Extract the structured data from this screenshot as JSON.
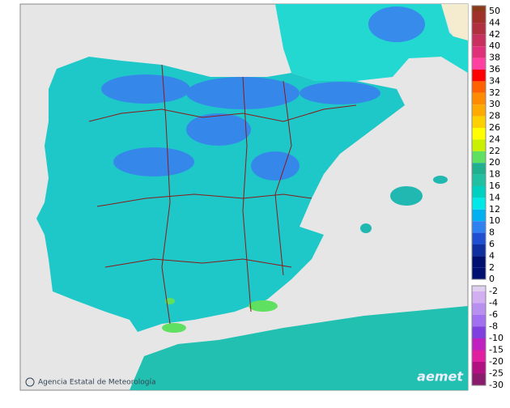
{
  "legend": {
    "scale": [
      {
        "value": 50,
        "color": "#8b3a1a"
      },
      {
        "value": 44,
        "color": "#a0302a"
      },
      {
        "value": 42,
        "color": "#b03040"
      },
      {
        "value": 40,
        "color": "#c83060"
      },
      {
        "value": 38,
        "color": "#e0307a"
      },
      {
        "value": 36,
        "color": "#ff40a0"
      },
      {
        "value": 34,
        "color": "#ff0000"
      },
      {
        "value": 32,
        "color": "#ff6000"
      },
      {
        "value": 30,
        "color": "#ff8c00"
      },
      {
        "value": 28,
        "color": "#ffaa00"
      },
      {
        "value": 26,
        "color": "#ffd000"
      },
      {
        "value": 24,
        "color": "#ffff00"
      },
      {
        "value": 22,
        "color": "#c8f000"
      },
      {
        "value": 20,
        "color": "#60e060"
      },
      {
        "value": 18,
        "color": "#20b090"
      },
      {
        "value": 16,
        "color": "#20c0a0"
      },
      {
        "value": 14,
        "color": "#00d0c0"
      },
      {
        "value": 12,
        "color": "#00e8e8"
      },
      {
        "value": 10,
        "color": "#00b0f0"
      },
      {
        "value": 8,
        "color": "#3080f0"
      },
      {
        "value": 6,
        "color": "#2050d0"
      },
      {
        "value": 4,
        "color": "#1030a0"
      },
      {
        "value": 2,
        "color": "#001070"
      },
      {
        "value": 0,
        "color": "#001070"
      }
    ],
    "scale_negative": [
      {
        "value": -2,
        "color": "#e0d0f0"
      },
      {
        "value": -4,
        "color": "#d0b0f0"
      },
      {
        "value": -6,
        "color": "#b890f0"
      },
      {
        "value": -8,
        "color": "#a070f0"
      },
      {
        "value": -10,
        "color": "#8040e0"
      },
      {
        "value": -15,
        "color": "#c020c0"
      },
      {
        "value": -20,
        "color": "#e020a0"
      },
      {
        "value": -25,
        "color": "#b01080"
      },
      {
        "value": -30,
        "color": "#8a1a6a"
      }
    ]
  },
  "footer": {
    "agency": "Agencia Estatal de Meteorología",
    "logo": "aemet"
  }
}
